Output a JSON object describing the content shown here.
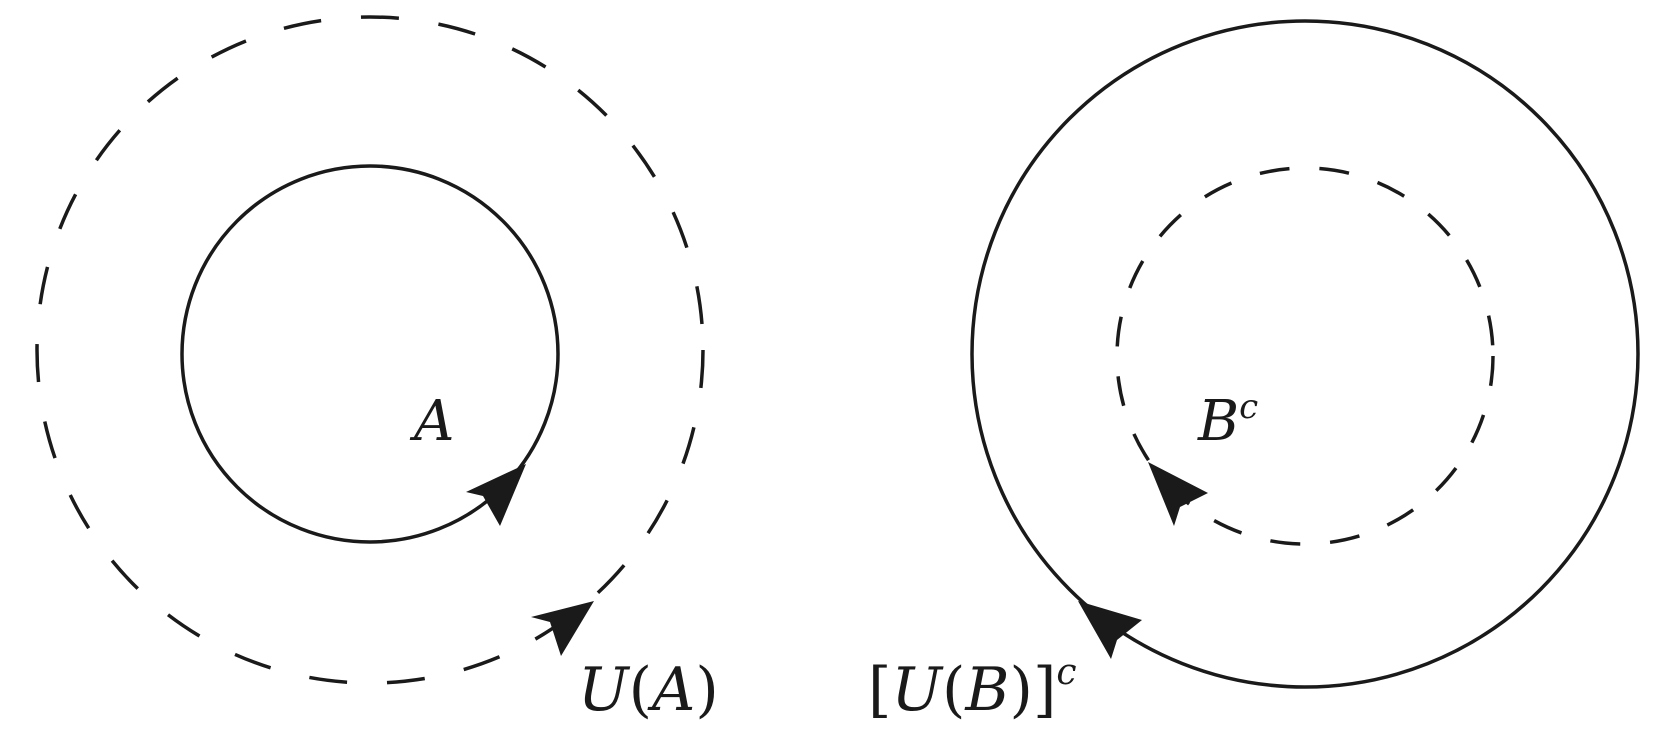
{
  "colors": {
    "stroke": "#1a1a1a",
    "background": "#ffffff"
  },
  "left_panel": {
    "inner_region": {
      "label": "A",
      "style": "solid",
      "orientation": "counterclockwise"
    },
    "outer_region": {
      "label_letter": "U",
      "label_open": "(",
      "label_arg": "A",
      "label_close": ")",
      "style": "dashed",
      "orientation": "counterclockwise"
    }
  },
  "right_panel": {
    "inner_region": {
      "label_letter": "B",
      "label_superscript": "c",
      "style": "dashed",
      "orientation": "clockwise"
    },
    "outer_region": {
      "label_open_bracket": "[",
      "label_letter": "U",
      "label_open": "(",
      "label_arg": "B",
      "label_close": ")",
      "label_close_bracket": "]",
      "label_superscript": "c",
      "style": "solid",
      "orientation": "clockwise"
    }
  }
}
